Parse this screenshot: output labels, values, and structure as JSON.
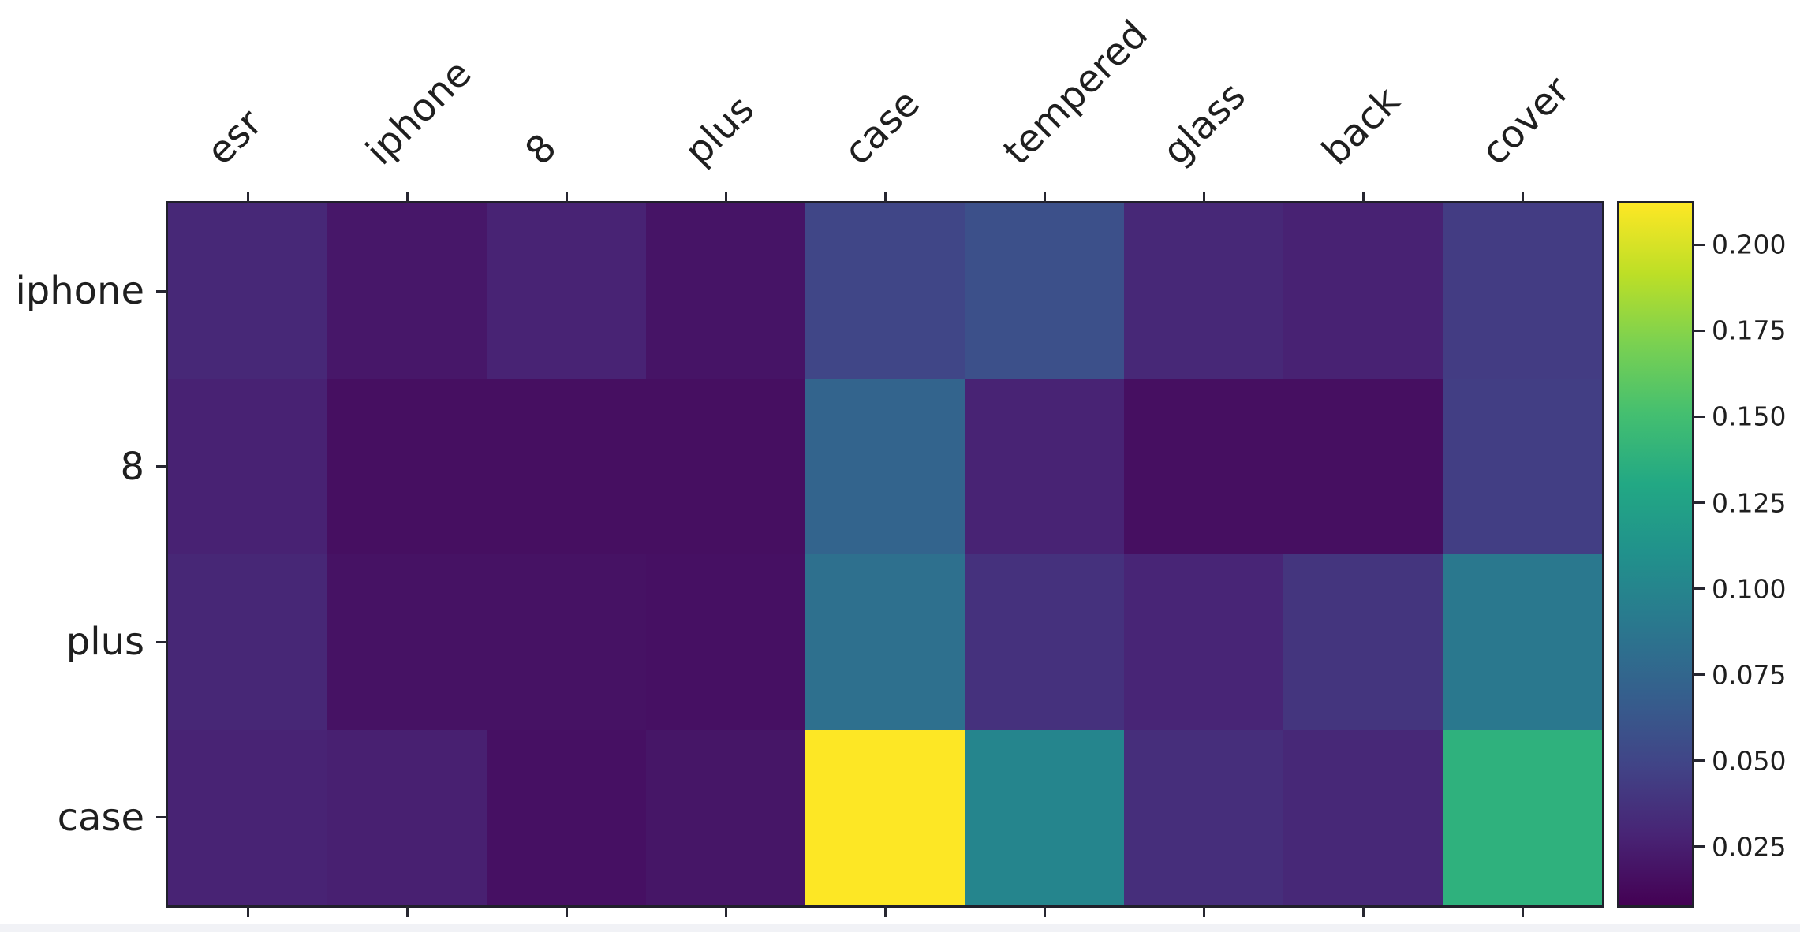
{
  "chart_data": {
    "type": "heatmap",
    "title": "",
    "xlabel": "",
    "ylabel": "",
    "x_categories": [
      "esr",
      "iphone",
      "8",
      "plus",
      "case",
      "tempered",
      "glass",
      "back",
      "cover"
    ],
    "y_categories": [
      "iphone",
      "8",
      "plus",
      "case"
    ],
    "values": [
      [
        0.031,
        0.021,
        0.028,
        0.019,
        0.05,
        0.058,
        0.031,
        0.027,
        0.044
      ],
      [
        0.027,
        0.016,
        0.016,
        0.016,
        0.073,
        0.028,
        0.016,
        0.016,
        0.045
      ],
      [
        0.03,
        0.018,
        0.018,
        0.017,
        0.083,
        0.037,
        0.029,
        0.039,
        0.09
      ],
      [
        0.028,
        0.026,
        0.017,
        0.02,
        0.212,
        0.1,
        0.035,
        0.031,
        0.138
      ]
    ],
    "vmin": 0.008,
    "vmax": 0.212,
    "colormap": "viridis",
    "x_tick_rotation_deg": 45,
    "x_ticks_position": "top-and-bottom",
    "grid": false,
    "legend_position": "none",
    "colorbar": {
      "position": "right",
      "tick_labels": [
        "0.200",
        "0.175",
        "0.150",
        "0.125",
        "0.100",
        "0.075",
        "0.050",
        "0.025"
      ],
      "tick_values": [
        0.2,
        0.175,
        0.15,
        0.125,
        0.1,
        0.075,
        0.05,
        0.025
      ]
    }
  },
  "colors": {
    "background": "#ffffff",
    "spine": "#20202b",
    "tick": "#262630",
    "text": "#1f1f1f",
    "bottom_strip": "#f1f2f6",
    "viridis_stops": [
      "#440154",
      "#482475",
      "#414487",
      "#355f8d",
      "#2a788e",
      "#21918c",
      "#22a884",
      "#44bf70",
      "#7ad151",
      "#bddf26",
      "#fde725"
    ]
  }
}
